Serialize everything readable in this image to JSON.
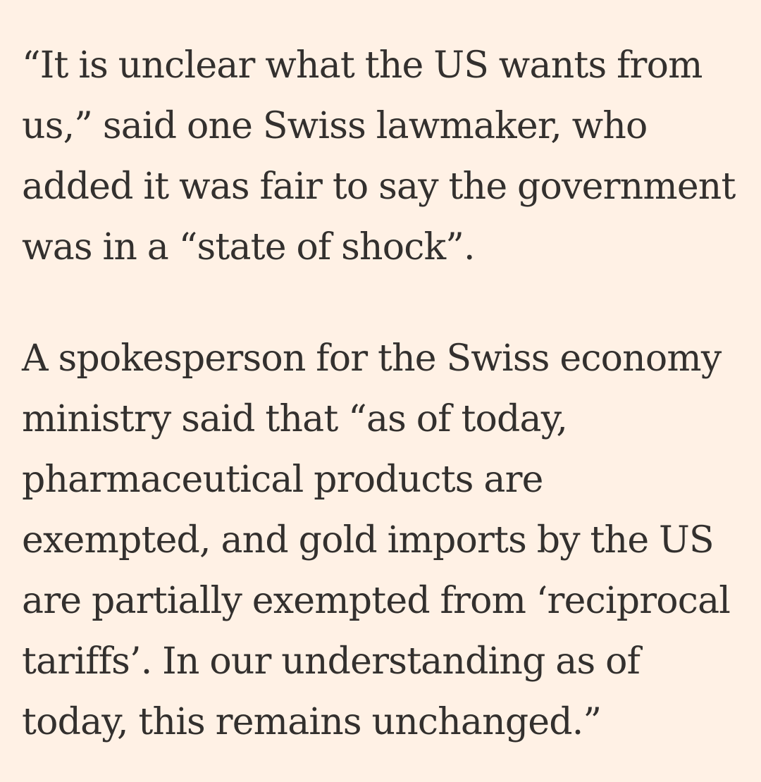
{
  "article": {
    "paragraphs": [
      {
        "lines": [
          "“It is unclear what the US wants from",
          "us,” said one Swiss lawmaker, who",
          "added it was fair to say the government",
          "was in a “state of shock”."
        ]
      },
      {
        "lines": [
          "A spokesperson for the Swiss economy",
          "ministry said that “as of today,",
          "pharmaceutical products are",
          "exempted, and gold imports by the US",
          "are partially exempted from ‘reciprocal",
          "tariffs’. In our understanding as of",
          "today, this remains unchanged.”"
        ]
      }
    ]
  }
}
